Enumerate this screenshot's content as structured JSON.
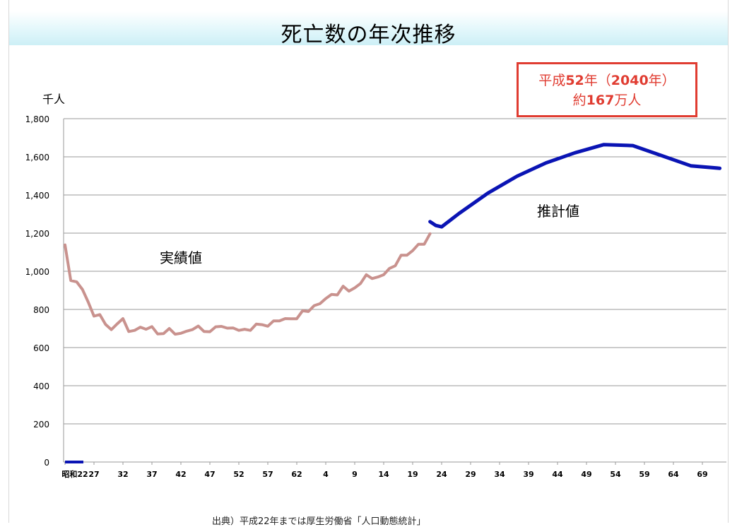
{
  "title": "死亡数の年次推移",
  "callout": {
    "line1_prefix": "平成",
    "line1_num": "52",
    "line1_mid": "年（",
    "line1_num2": "2040",
    "line1_suffix": "年）",
    "line2_prefix": "約",
    "line2_num": "167",
    "line2_suffix": "万人"
  },
  "footer_text": "出典）平成22年までは厚生労働省「人口動態統計」",
  "chart_data": {
    "type": "line",
    "title": "死亡数の年次推移",
    "ylabel": "千人",
    "xlabel": "",
    "ylim": [
      0,
      1800
    ],
    "yticks": [
      0,
      200,
      400,
      600,
      800,
      1000,
      1200,
      1400,
      1600,
      1800
    ],
    "ytick_labels": [
      "0",
      "200",
      "400",
      "600",
      "800",
      "1,000",
      "1,200",
      "1,400",
      "1,600",
      "1,800"
    ],
    "xticks": [
      {
        "year": 1947,
        "label": "昭和22"
      },
      {
        "year": 1952,
        "label": "27"
      },
      {
        "year": 1957,
        "label": "32"
      },
      {
        "year": 1962,
        "label": "37"
      },
      {
        "year": 1967,
        "label": "42"
      },
      {
        "year": 1972,
        "label": "47"
      },
      {
        "year": 1977,
        "label": "52"
      },
      {
        "year": 1982,
        "label": "57"
      },
      {
        "year": 1987,
        "label": "62"
      },
      {
        "year": 1992,
        "label": "4"
      },
      {
        "year": 1997,
        "label": "9"
      },
      {
        "year": 2002,
        "label": "14"
      },
      {
        "year": 2007,
        "label": "19"
      },
      {
        "year": 2012,
        "label": "24"
      },
      {
        "year": 2017,
        "label": "29"
      },
      {
        "year": 2022,
        "label": "34"
      },
      {
        "year": 2027,
        "label": "39"
      },
      {
        "year": 2032,
        "label": "44"
      },
      {
        "year": 2037,
        "label": "49"
      },
      {
        "year": 2042,
        "label": "54"
      },
      {
        "year": 2047,
        "label": "59"
      },
      {
        "year": 2052,
        "label": "64"
      },
      {
        "year": 2057,
        "label": "69"
      }
    ],
    "xlim": [
      1947,
      2060
    ],
    "grid": true,
    "series": [
      {
        "name": "実績値",
        "color": "#c9928e",
        "x": [
          1947,
          1948,
          1949,
          1950,
          1951,
          1952,
          1953,
          1954,
          1955,
          1956,
          1957,
          1958,
          1959,
          1960,
          1961,
          1962,
          1963,
          1964,
          1965,
          1966,
          1967,
          1968,
          1969,
          1970,
          1971,
          1972,
          1973,
          1974,
          1975,
          1976,
          1977,
          1978,
          1979,
          1980,
          1981,
          1982,
          1983,
          1984,
          1985,
          1986,
          1987,
          1988,
          1989,
          1990,
          1991,
          1992,
          1993,
          1994,
          1995,
          1996,
          1997,
          1998,
          1999,
          2000,
          2001,
          2002,
          2003,
          2004,
          2005,
          2006,
          2007,
          2008,
          2009,
          2010
        ],
        "values": [
          1138,
          951,
          945,
          905,
          839,
          765,
          773,
          721,
          694,
          724,
          752,
          684,
          690,
          707,
          696,
          710,
          671,
          673,
          700,
          670,
          675,
          686,
          694,
          713,
          684,
          683,
          709,
          711,
          702,
          703,
          690,
          696,
          690,
          723,
          720,
          712,
          740,
          740,
          752,
          751,
          751,
          793,
          789,
          820,
          830,
          857,
          879,
          876,
          922,
          896,
          913,
          936,
          982,
          962,
          970,
          982,
          1015,
          1029,
          1084,
          1084,
          1108,
          1142,
          1142,
          1197
        ]
      },
      {
        "name": "推計値",
        "color": "#0a14b4",
        "x": [
          2010,
          2011,
          2012,
          2015,
          2020,
          2025,
          2030,
          2035,
          2040,
          2045,
          2050,
          2055,
          2060
        ],
        "values": [
          1260,
          1240,
          1233,
          1303,
          1410,
          1498,
          1568,
          1621,
          1664,
          1659,
          1606,
          1553,
          1540
        ]
      }
    ],
    "annotations": [
      "実績値",
      "推計値"
    ]
  }
}
